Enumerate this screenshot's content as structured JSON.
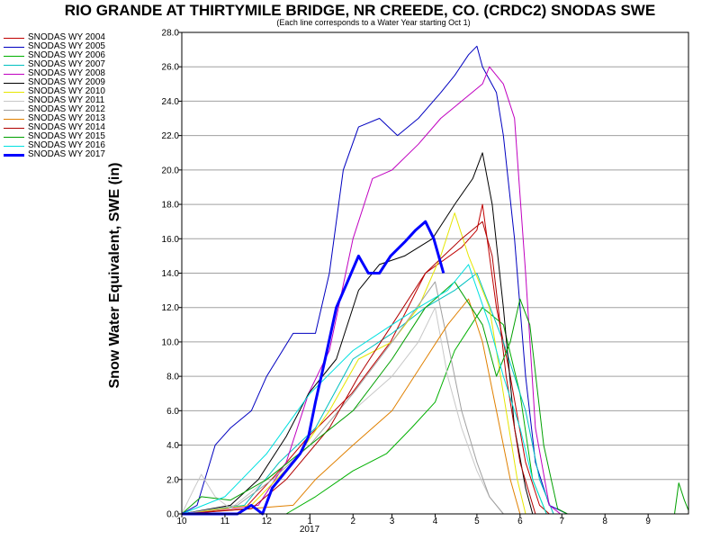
{
  "chart_data": {
    "type": "line",
    "title": "RIO GRANDE AT THIRTYMILE BRIDGE, NR CREEDE, CO. (CRDC2) SNODAS SWE",
    "subtitle": "(Each line corresponds to a Water Year starting Oct 1)",
    "ylabel": "Snow Water Equivalent, SWE (in)",
    "xlabel": "",
    "year_label": "2017",
    "ylim": [
      0,
      28
    ],
    "xlim": [
      "2016-10-01",
      "2017-09-30"
    ],
    "yticks": [
      "0.0",
      "2.0",
      "4.0",
      "6.0",
      "8.0",
      "10.0",
      "12.0",
      "14.0",
      "16.0",
      "18.0",
      "20.0",
      "22.0",
      "24.0",
      "26.0",
      "28.0"
    ],
    "xticks": [
      {
        "date": "2016-10-01",
        "label": "10"
      },
      {
        "date": "2016-11-01",
        "label": "11"
      },
      {
        "date": "2016-12-01",
        "label": "12"
      },
      {
        "date": "2017-01-01",
        "label": "1"
      },
      {
        "date": "2017-02-01",
        "label": "2"
      },
      {
        "date": "2017-03-01",
        "label": "3"
      },
      {
        "date": "2017-04-01",
        "label": "4"
      },
      {
        "date": "2017-05-01",
        "label": "5"
      },
      {
        "date": "2017-06-01",
        "label": "6"
      },
      {
        "date": "2017-07-01",
        "label": "7"
      },
      {
        "date": "2017-08-01",
        "label": "8"
      },
      {
        "date": "2017-09-01",
        "label": "9"
      }
    ],
    "grid": "horizontal",
    "legend_position": "left",
    "series": [
      {
        "name": "SNODAS WY 2004",
        "color": "#c00000",
        "width": 1,
        "points": [
          [
            "2016-10-01",
            0
          ],
          [
            "2016-11-15",
            0.3
          ],
          [
            "2016-12-10",
            2.5
          ],
          [
            "2016-12-31",
            4.5
          ],
          [
            "2017-01-31",
            7
          ],
          [
            "2017-02-28",
            10
          ],
          [
            "2017-03-25",
            14
          ],
          [
            "2017-04-20",
            15.5
          ],
          [
            "2017-05-01",
            16.5
          ],
          [
            "2017-05-05",
            18
          ],
          [
            "2017-05-15",
            12
          ],
          [
            "2017-05-25",
            8
          ],
          [
            "2017-06-05",
            3
          ],
          [
            "2017-06-15",
            0.5
          ],
          [
            "2017-06-22",
            0
          ]
        ]
      },
      {
        "name": "SNODAS WY 2005",
        "color": "#0000c0",
        "width": 1,
        "points": [
          [
            "2016-10-01",
            0
          ],
          [
            "2016-10-12",
            0.5
          ],
          [
            "2016-10-25",
            4
          ],
          [
            "2016-11-05",
            5
          ],
          [
            "2016-11-20",
            6
          ],
          [
            "2016-12-01",
            8
          ],
          [
            "2016-12-20",
            10.5
          ],
          [
            "2017-01-05",
            10.5
          ],
          [
            "2017-01-15",
            14
          ],
          [
            "2017-01-25",
            20
          ],
          [
            "2017-02-05",
            22.5
          ],
          [
            "2017-02-20",
            23
          ],
          [
            "2017-03-05",
            22
          ],
          [
            "2017-03-20",
            23
          ],
          [
            "2017-04-05",
            24.5
          ],
          [
            "2017-04-15",
            25.5
          ],
          [
            "2017-04-25",
            26.7
          ],
          [
            "2017-05-01",
            27.2
          ],
          [
            "2017-05-05",
            26
          ],
          [
            "2017-05-15",
            24.5
          ],
          [
            "2017-05-20",
            22
          ],
          [
            "2017-05-28",
            16
          ],
          [
            "2017-06-05",
            8
          ],
          [
            "2017-06-12",
            3
          ],
          [
            "2017-06-22",
            0.5
          ],
          [
            "2017-07-05",
            0
          ]
        ]
      },
      {
        "name": "SNODAS WY 2006",
        "color": "#00b000",
        "width": 1,
        "points": [
          [
            "2016-10-01",
            0
          ],
          [
            "2016-12-15",
            0
          ],
          [
            "2017-01-05",
            1
          ],
          [
            "2017-02-01",
            2.5
          ],
          [
            "2017-02-25",
            3.5
          ],
          [
            "2017-03-15",
            5
          ],
          [
            "2017-04-01",
            6.5
          ],
          [
            "2017-04-15",
            9.5
          ],
          [
            "2017-05-05",
            12
          ],
          [
            "2017-05-20",
            11
          ],
          [
            "2017-06-01",
            7
          ],
          [
            "2017-06-10",
            2
          ],
          [
            "2017-06-20",
            0
          ]
        ]
      },
      {
        "name": "SNODAS WY 2007",
        "color": "#00c0c0",
        "width": 1,
        "points": [
          [
            "2016-10-01",
            0
          ],
          [
            "2016-11-15",
            0.5
          ],
          [
            "2016-12-10",
            3
          ],
          [
            "2017-01-05",
            5
          ],
          [
            "2017-02-01",
            9
          ],
          [
            "2017-03-01",
            10.5
          ],
          [
            "2017-03-25",
            12
          ],
          [
            "2017-04-15",
            13
          ],
          [
            "2017-05-01",
            14
          ],
          [
            "2017-05-20",
            10
          ],
          [
            "2017-06-05",
            6
          ],
          [
            "2017-06-15",
            2
          ],
          [
            "2017-06-25",
            0
          ]
        ]
      },
      {
        "name": "SNODAS WY 2008",
        "color": "#c000c0",
        "width": 1,
        "points": [
          [
            "2016-10-01",
            0
          ],
          [
            "2016-11-25",
            0.5
          ],
          [
            "2016-12-15",
            3
          ],
          [
            "2016-12-31",
            7
          ],
          [
            "2017-01-15",
            9.5
          ],
          [
            "2017-02-01",
            16
          ],
          [
            "2017-02-15",
            19.5
          ],
          [
            "2017-03-01",
            20
          ],
          [
            "2017-03-20",
            21.5
          ],
          [
            "2017-04-05",
            23
          ],
          [
            "2017-04-20",
            24
          ],
          [
            "2017-05-05",
            25
          ],
          [
            "2017-05-10",
            26
          ],
          [
            "2017-05-20",
            25
          ],
          [
            "2017-05-28",
            23
          ],
          [
            "2017-06-05",
            14
          ],
          [
            "2017-06-12",
            5
          ],
          [
            "2017-06-22",
            0.5
          ],
          [
            "2017-06-30",
            0
          ]
        ]
      },
      {
        "name": "SNODAS WY 2009",
        "color": "#000000",
        "width": 1,
        "points": [
          [
            "2016-10-01",
            0
          ],
          [
            "2016-11-05",
            0.5
          ],
          [
            "2016-11-25",
            2
          ],
          [
            "2016-12-15",
            4.5
          ],
          [
            "2016-12-31",
            7
          ],
          [
            "2017-01-20",
            9
          ],
          [
            "2017-02-05",
            13
          ],
          [
            "2017-02-20",
            14.5
          ],
          [
            "2017-03-10",
            15
          ],
          [
            "2017-03-30",
            16
          ],
          [
            "2017-04-15",
            18
          ],
          [
            "2017-04-28",
            19.5
          ],
          [
            "2017-05-05",
            21
          ],
          [
            "2017-05-12",
            18
          ],
          [
            "2017-05-20",
            12
          ],
          [
            "2017-05-28",
            5
          ],
          [
            "2017-06-05",
            1.5
          ],
          [
            "2017-06-10",
            0
          ]
        ]
      },
      {
        "name": "SNODAS WY 2010",
        "color": "#e6e600",
        "width": 1,
        "points": [
          [
            "2016-10-01",
            0
          ],
          [
            "2016-11-20",
            0.5
          ],
          [
            "2016-12-20",
            3
          ],
          [
            "2017-01-15",
            6
          ],
          [
            "2017-02-05",
            9
          ],
          [
            "2017-03-01",
            10
          ],
          [
            "2017-03-20",
            12
          ],
          [
            "2017-04-05",
            15
          ],
          [
            "2017-04-15",
            17.5
          ],
          [
            "2017-04-25",
            15
          ],
          [
            "2017-05-10",
            12
          ],
          [
            "2017-05-20",
            7
          ],
          [
            "2017-05-30",
            2
          ],
          [
            "2017-06-05",
            0
          ]
        ]
      },
      {
        "name": "SNODAS WY 2011",
        "color": "#c8c8c8",
        "width": 1,
        "points": [
          [
            "2016-10-01",
            0
          ],
          [
            "2016-10-10",
            1.5
          ],
          [
            "2016-10-15",
            2.3
          ],
          [
            "2016-10-25",
            1
          ],
          [
            "2016-11-05",
            0.3
          ],
          [
            "2016-12-01",
            2
          ],
          [
            "2017-01-01",
            4
          ],
          [
            "2017-02-01",
            6
          ],
          [
            "2017-03-01",
            8
          ],
          [
            "2017-03-20",
            10
          ],
          [
            "2017-04-01",
            12
          ],
          [
            "2017-04-10",
            8
          ],
          [
            "2017-04-20",
            5
          ],
          [
            "2017-05-01",
            2.5
          ],
          [
            "2017-05-10",
            1
          ],
          [
            "2017-05-20",
            0
          ]
        ]
      },
      {
        "name": "SNODAS WY 2012",
        "color": "#a0a0a0",
        "width": 1,
        "points": [
          [
            "2016-10-01",
            0
          ],
          [
            "2016-11-10",
            0.5
          ],
          [
            "2016-12-05",
            2
          ],
          [
            "2017-01-01",
            4
          ],
          [
            "2017-02-01",
            7
          ],
          [
            "2017-03-01",
            10
          ],
          [
            "2017-04-01",
            13.5
          ],
          [
            "2017-04-10",
            10
          ],
          [
            "2017-04-20",
            6
          ],
          [
            "2017-05-01",
            3
          ],
          [
            "2017-05-10",
            1
          ],
          [
            "2017-05-20",
            0
          ]
        ]
      },
      {
        "name": "SNODAS WY 2013",
        "color": "#e08000",
        "width": 1,
        "points": [
          [
            "2016-10-01",
            0
          ],
          [
            "2016-12-20",
            0.5
          ],
          [
            "2017-01-05",
            2
          ],
          [
            "2017-02-01",
            4
          ],
          [
            "2017-03-01",
            6
          ],
          [
            "2017-03-25",
            9
          ],
          [
            "2017-04-10",
            11
          ],
          [
            "2017-04-25",
            12.5
          ],
          [
            "2017-05-05",
            10
          ],
          [
            "2017-05-15",
            6
          ],
          [
            "2017-05-25",
            2
          ],
          [
            "2017-06-01",
            0
          ]
        ]
      },
      {
        "name": "SNODAS WY 2014",
        "color": "#b00000",
        "width": 1,
        "points": [
          [
            "2016-10-01",
            0
          ],
          [
            "2016-11-20",
            0.3
          ],
          [
            "2016-12-15",
            2
          ],
          [
            "2017-01-15",
            5
          ],
          [
            "2017-02-05",
            8
          ],
          [
            "2017-03-01",
            11
          ],
          [
            "2017-03-25",
            14
          ],
          [
            "2017-04-20",
            16
          ],
          [
            "2017-05-05",
            17
          ],
          [
            "2017-05-12",
            15
          ],
          [
            "2017-05-22",
            8
          ],
          [
            "2017-06-01",
            3
          ],
          [
            "2017-06-12",
            0
          ]
        ]
      },
      {
        "name": "SNODAS WY 2015",
        "color": "#00a000",
        "width": 1,
        "points": [
          [
            "2016-10-01",
            0
          ],
          [
            "2016-10-15",
            1
          ],
          [
            "2016-11-05",
            0.8
          ],
          [
            "2016-12-01",
            2
          ],
          [
            "2017-01-01",
            4
          ],
          [
            "2017-02-01",
            6
          ],
          [
            "2017-03-01",
            9
          ],
          [
            "2017-03-25",
            12
          ],
          [
            "2017-04-15",
            13.5
          ],
          [
            "2017-05-05",
            11
          ],
          [
            "2017-05-15",
            8
          ],
          [
            "2017-05-25",
            10
          ],
          [
            "2017-06-01",
            12.5
          ],
          [
            "2017-06-08",
            11
          ],
          [
            "2017-06-18",
            4
          ],
          [
            "2017-06-28",
            0.3
          ],
          [
            "2017-07-05",
            0
          ],
          [
            "2017-09-20",
            0
          ],
          [
            "2017-09-23",
            1.8
          ],
          [
            "2017-09-27",
            0.8
          ],
          [
            "2017-09-30",
            0.2
          ]
        ]
      },
      {
        "name": "SNODAS WY 2016",
        "color": "#00e0e0",
        "width": 1,
        "points": [
          [
            "2016-10-01",
            0
          ],
          [
            "2016-11-01",
            1
          ],
          [
            "2016-12-01",
            3.5
          ],
          [
            "2017-01-01",
            7
          ],
          [
            "2017-02-01",
            9.5
          ],
          [
            "2017-03-01",
            11
          ],
          [
            "2017-03-20",
            12
          ],
          [
            "2017-04-10",
            13
          ],
          [
            "2017-04-25",
            14.5
          ],
          [
            "2017-05-10",
            11
          ],
          [
            "2017-05-20",
            8
          ],
          [
            "2017-06-01",
            5
          ],
          [
            "2017-06-10",
            2
          ],
          [
            "2017-06-20",
            0
          ]
        ]
      },
      {
        "name": "SNODAS WY 2017",
        "color": "#0000ff",
        "width": 3,
        "points": [
          [
            "2016-10-01",
            0
          ],
          [
            "2016-11-10",
            0
          ],
          [
            "2016-11-20",
            0.5
          ],
          [
            "2016-11-28",
            0
          ],
          [
            "2016-12-05",
            1.5
          ],
          [
            "2016-12-15",
            2.5
          ],
          [
            "2016-12-25",
            3.5
          ],
          [
            "2016-12-31",
            4.5
          ],
          [
            "2017-01-05",
            6.5
          ],
          [
            "2017-01-12",
            9
          ],
          [
            "2017-01-20",
            12
          ],
          [
            "2017-01-28",
            13.5
          ],
          [
            "2017-02-05",
            15
          ],
          [
            "2017-02-12",
            14
          ],
          [
            "2017-02-20",
            14
          ],
          [
            "2017-02-28",
            15
          ],
          [
            "2017-03-10",
            15.8
          ],
          [
            "2017-03-18",
            16.5
          ],
          [
            "2017-03-25",
            17
          ],
          [
            "2017-03-31",
            16
          ],
          [
            "2017-04-07",
            14
          ]
        ]
      }
    ]
  }
}
